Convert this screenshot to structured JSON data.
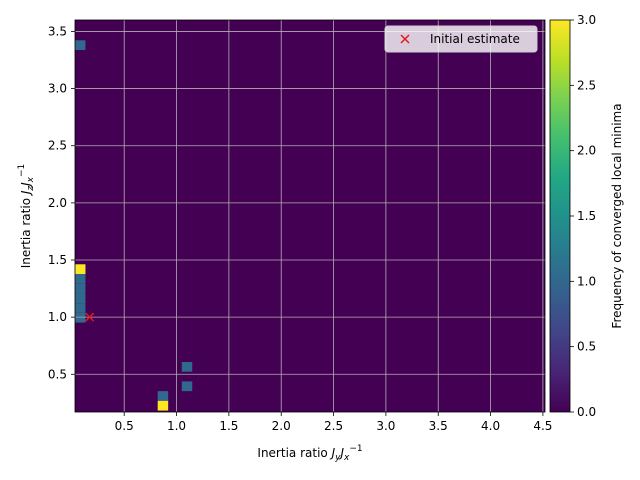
{
  "chart_data": {
    "type": "heatmap",
    "xlabel": "Inertia ratio J_y J_x^{-1}",
    "xlabel_parts": {
      "pre": "Inertia ratio ",
      "a": "J",
      "a_sub": "y",
      "b": "J",
      "b_sub": "x",
      "b_sup": "−1"
    },
    "ylabel": "Inertia ratio J_z J_x^{-1}",
    "ylabel_parts": {
      "pre": "Inertia ratio ",
      "a": "J",
      "a_sub": "z",
      "b": "J",
      "b_sub": "x",
      "b_sup": "−1"
    },
    "xlim": [
      0.03,
      4.52
    ],
    "ylim": [
      0.17,
      3.6
    ],
    "xticks": [
      0.5,
      1.0,
      1.5,
      2.0,
      2.5,
      3.0,
      3.5,
      4.0,
      4.5
    ],
    "xtick_labels": [
      "0.5",
      "1.0",
      "1.5",
      "2.0",
      "2.5",
      "3.0",
      "3.5",
      "4.0",
      "4.5"
    ],
    "yticks": [
      0.5,
      1.0,
      1.5,
      2.0,
      2.5,
      3.0,
      3.5
    ],
    "ytick_labels": [
      "0.5",
      "1.0",
      "1.5",
      "2.0",
      "2.5",
      "3.0",
      "3.5"
    ],
    "grid": true,
    "colormap": "viridis",
    "background_value": 0,
    "bin_width": 0.1,
    "bin_height": 0.085,
    "cells": [
      {
        "x": 0.08,
        "y": 3.38,
        "value": 1
      },
      {
        "x": 0.08,
        "y": 1.42,
        "value": 3
      },
      {
        "x": 0.08,
        "y": 1.335,
        "value": 1
      },
      {
        "x": 0.08,
        "y": 1.25,
        "value": 1
      },
      {
        "x": 0.08,
        "y": 1.165,
        "value": 1
      },
      {
        "x": 0.08,
        "y": 1.08,
        "value": 1
      },
      {
        "x": 0.08,
        "y": 0.995,
        "value": 1
      },
      {
        "x": 1.1,
        "y": 0.565,
        "value": 1
      },
      {
        "x": 1.1,
        "y": 0.395,
        "value": 1
      },
      {
        "x": 0.87,
        "y": 0.31,
        "value": 1
      },
      {
        "x": 0.87,
        "y": 0.225,
        "value": 3
      }
    ],
    "marker": {
      "x": 0.17,
      "y": 1.0,
      "symbol": "x",
      "color": "#e31a1c",
      "label": "Initial estimate"
    },
    "legend": {
      "position": "top-right",
      "entries": [
        "Initial estimate"
      ]
    },
    "colorbar": {
      "label": "Frequency of converged local minima",
      "range": [
        0,
        3
      ],
      "ticks": [
        0.0,
        0.5,
        1.0,
        1.5,
        2.0,
        2.5,
        3.0
      ],
      "tick_labels": [
        "0.0",
        "0.5",
        "1.0",
        "1.5",
        "2.0",
        "2.5",
        "3.0"
      ]
    },
    "colors": {
      "low": "#440154",
      "mid": "#31688e",
      "high": "#fde725",
      "marker": "#e31a1c"
    }
  }
}
